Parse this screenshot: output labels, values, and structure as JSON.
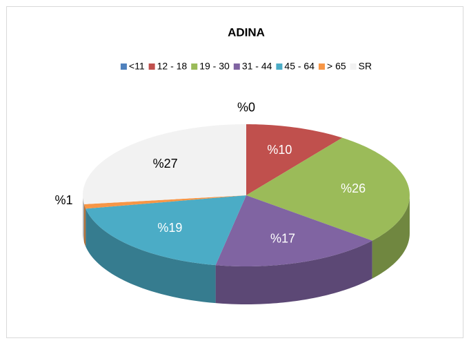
{
  "chart_data": {
    "type": "pie",
    "title": "ADINA",
    "categories": [
      "<11",
      "12 - 18",
      "19 - 30",
      "31 - 44",
      "45 - 64",
      "> 65",
      "SR"
    ],
    "values": [
      0,
      10,
      26,
      17,
      19,
      1,
      27
    ],
    "value_labels": [
      "%0",
      "%10",
      "%26",
      "%17",
      "%19",
      "%1",
      "%27"
    ],
    "colors": [
      "#4f81bd",
      "#c0504d",
      "#9bbb59",
      "#8064a2",
      "#4bacc6",
      "#f79646",
      "#f2f2f2"
    ],
    "legend": "top"
  }
}
